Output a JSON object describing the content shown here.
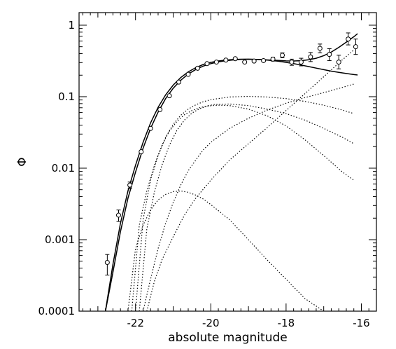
{
  "chart_data": {
    "type": "line",
    "title": "",
    "xlabel": "absolute magnitude",
    "ylabel": "Φ",
    "xlim": [
      -23.5,
      -15.6
    ],
    "ylim": [
      0.0001,
      1.5
    ],
    "yscale": "log",
    "xticks": [
      -22,
      -20,
      -18,
      -16
    ],
    "xtick_labels": [
      "-22",
      "-20",
      "-18",
      "-16"
    ],
    "yticks": [
      0.0001,
      0.001,
      0.01,
      0.1,
      1
    ],
    "ytick_labels": [
      "0.0001",
      "0.001",
      "0.01",
      "0.1",
      "1"
    ],
    "grid": false,
    "legend": "none",
    "data_points": [
      {
        "x": -22.75,
        "y": 0.00048,
        "lo": 0.00032,
        "hi": 0.00062
      },
      {
        "x": -22.45,
        "y": 0.0022,
        "lo": 0.0018,
        "hi": 0.0026
      },
      {
        "x": -22.15,
        "y": 0.0058,
        "lo": 0.0052,
        "hi": 0.0064
      },
      {
        "x": -21.85,
        "y": 0.017
      },
      {
        "x": -21.6,
        "y": 0.036
      },
      {
        "x": -21.35,
        "y": 0.066
      },
      {
        "x": -21.1,
        "y": 0.103
      },
      {
        "x": -20.85,
        "y": 0.16
      },
      {
        "x": -20.6,
        "y": 0.205
      },
      {
        "x": -20.35,
        "y": 0.25
      },
      {
        "x": -20.1,
        "y": 0.29
      },
      {
        "x": -19.85,
        "y": 0.305
      },
      {
        "x": -19.6,
        "y": 0.325
      },
      {
        "x": -19.35,
        "y": 0.34
      },
      {
        "x": -19.1,
        "y": 0.305
      },
      {
        "x": -18.85,
        "y": 0.315
      },
      {
        "x": -18.6,
        "y": 0.32
      },
      {
        "x": -18.35,
        "y": 0.335,
        "lo": 0.315,
        "hi": 0.355
      },
      {
        "x": -18.1,
        "y": 0.38,
        "lo": 0.35,
        "hi": 0.41
      },
      {
        "x": -17.85,
        "y": 0.305,
        "lo": 0.275,
        "hi": 0.335
      },
      {
        "x": -17.6,
        "y": 0.305,
        "lo": 0.27,
        "hi": 0.345
      },
      {
        "x": -17.35,
        "y": 0.36,
        "lo": 0.31,
        "hi": 0.415
      },
      {
        "x": -17.1,
        "y": 0.475,
        "lo": 0.41,
        "hi": 0.545
      },
      {
        "x": -16.85,
        "y": 0.39,
        "lo": 0.32,
        "hi": 0.47
      },
      {
        "x": -16.6,
        "y": 0.305,
        "lo": 0.245,
        "hi": 0.38
      },
      {
        "x": -16.35,
        "y": 0.64,
        "lo": 0.53,
        "hi": 0.78
      },
      {
        "x": -16.15,
        "y": 0.5,
        "lo": 0.39,
        "hi": 0.64
      }
    ],
    "series": [
      {
        "style": "solid",
        "x": [
          -22.8,
          -22.6,
          -22.4,
          -22.2,
          -22.0,
          -21.8,
          -21.6,
          -21.4,
          -21.2,
          -21.0,
          -20.8,
          -20.6,
          -20.4,
          -20.2,
          -20.0,
          -19.8,
          -19.6,
          -19.4,
          -19.2,
          -19.0,
          -18.8,
          -18.6,
          -18.4,
          -18.2,
          -18.0,
          -17.8,
          -17.6,
          -17.4,
          -17.2,
          -17.0,
          -16.8,
          -16.6,
          -16.4,
          -16.2,
          -16.1
        ],
        "y": [
          0.0001,
          0.00045,
          0.0017,
          0.0048,
          0.011,
          0.023,
          0.043,
          0.071,
          0.106,
          0.145,
          0.185,
          0.222,
          0.255,
          0.282,
          0.302,
          0.316,
          0.325,
          0.331,
          0.334,
          0.334,
          0.332,
          0.329,
          0.325,
          0.321,
          0.317,
          0.316,
          0.319,
          0.328,
          0.345,
          0.375,
          0.42,
          0.49,
          0.58,
          0.69,
          0.76
        ]
      },
      {
        "style": "solid",
        "x": [
          -22.8,
          -22.6,
          -22.4,
          -22.2,
          -22.0,
          -21.8,
          -21.6,
          -21.4,
          -21.2,
          -21.0,
          -20.8,
          -20.6,
          -20.4,
          -20.2,
          -20.0,
          -19.8,
          -19.6,
          -19.4,
          -19.2,
          -19.0,
          -18.8,
          -18.6,
          -18.4,
          -18.2,
          -18.0,
          -17.8,
          -17.6,
          -17.4,
          -17.2,
          -17.0,
          -16.8,
          -16.6,
          -16.4,
          -16.2,
          -16.1
        ],
        "y": [
          8e-05,
          0.00035,
          0.0013,
          0.0038,
          0.0088,
          0.019,
          0.036,
          0.061,
          0.094,
          0.131,
          0.17,
          0.207,
          0.24,
          0.268,
          0.29,
          0.307,
          0.319,
          0.327,
          0.332,
          0.334,
          0.333,
          0.329,
          0.322,
          0.313,
          0.302,
          0.29,
          0.277,
          0.264,
          0.251,
          0.239,
          0.228,
          0.219,
          0.211,
          0.204,
          0.201
        ]
      },
      {
        "style": "dotted",
        "x": [
          -22.0,
          -21.8,
          -21.6,
          -21.4,
          -21.2,
          -21.0,
          -20.8,
          -20.6,
          -20.4,
          -20.2,
          -20.0,
          -19.5,
          -19.0,
          -18.5,
          -18.0,
          -17.5,
          -17.0,
          -16.5,
          -16.2
        ],
        "y": [
          0.0001,
          0.0019,
          0.0068,
          0.015,
          0.027,
          0.041,
          0.055,
          0.067,
          0.077,
          0.085,
          0.091,
          0.099,
          0.101,
          0.099,
          0.094,
          0.086,
          0.076,
          0.065,
          0.058
        ]
      },
      {
        "style": "dotted",
        "x": [
          -21.9,
          -21.7,
          -21.5,
          -21.3,
          -21.1,
          -20.9,
          -20.7,
          -20.5,
          -20.3,
          -20.1,
          -19.9,
          -19.5,
          -19.0,
          -18.5,
          -18.0,
          -17.5,
          -17.0,
          -16.5,
          -16.2
        ],
        "y": [
          0.0001,
          0.0014,
          0.0046,
          0.011,
          0.021,
          0.034,
          0.047,
          0.059,
          0.068,
          0.074,
          0.078,
          0.079,
          0.075,
          0.067,
          0.058,
          0.047,
          0.036,
          0.027,
          0.022
        ]
      },
      {
        "style": "dotted",
        "x": [
          -22.1,
          -21.9,
          -21.7,
          -21.5,
          -21.3,
          -21.1,
          -20.9,
          -20.7,
          -20.5,
          -20.3,
          -20.1,
          -19.8,
          -19.5,
          -19.0,
          -18.5,
          -18.0,
          -17.5,
          -17.0,
          -16.5,
          -16.2
        ],
        "y": [
          0.0001,
          0.0016,
          0.0048,
          0.011,
          0.021,
          0.033,
          0.045,
          0.056,
          0.064,
          0.07,
          0.074,
          0.076,
          0.075,
          0.067,
          0.054,
          0.039,
          0.025,
          0.015,
          0.0088,
          0.0068
        ]
      },
      {
        "style": "dotted",
        "x": [
          -21.8,
          -21.6,
          -21.4,
          -21.2,
          -21.0,
          -20.8,
          -20.6,
          -20.4,
          -20.2,
          -20.0,
          -19.5,
          -19.0,
          -18.5,
          -18.0,
          -17.5,
          -17.0,
          -16.5,
          -16.2
        ],
        "y": [
          0.0001,
          0.00028,
          0.00075,
          0.0017,
          0.0033,
          0.0058,
          0.0092,
          0.013,
          0.018,
          0.023,
          0.036,
          0.05,
          0.065,
          0.081,
          0.097,
          0.114,
          0.135,
          0.15
        ]
      },
      {
        "style": "dotted",
        "x": [
          -21.7,
          -21.5,
          -21.3,
          -21.0,
          -20.7,
          -20.4,
          -20.0,
          -19.5,
          -19.0,
          -18.5,
          -18.0,
          -17.5,
          -17.0,
          -16.5,
          -16.2
        ],
        "y": [
          0.0001,
          0.00026,
          0.00052,
          0.0011,
          0.0022,
          0.0038,
          0.0068,
          0.013,
          0.022,
          0.037,
          0.064,
          0.11,
          0.19,
          0.33,
          0.45
        ]
      },
      {
        "style": "dotted",
        "x": [
          -22.2,
          -22.0,
          -21.8,
          -21.6,
          -21.4,
          -21.2,
          -21.0,
          -20.8,
          -20.6,
          -20.4,
          -20.2,
          -20.0,
          -19.5,
          -19.0,
          -18.5,
          -18.0,
          -17.5,
          -17.0
        ],
        "y": [
          0.0001,
          0.00075,
          0.0016,
          0.0026,
          0.0036,
          0.0043,
          0.0047,
          0.0048,
          0.0046,
          0.0042,
          0.0037,
          0.0031,
          0.0019,
          0.001,
          0.00052,
          0.00028,
          0.00015,
          0.0001
        ]
      }
    ]
  }
}
